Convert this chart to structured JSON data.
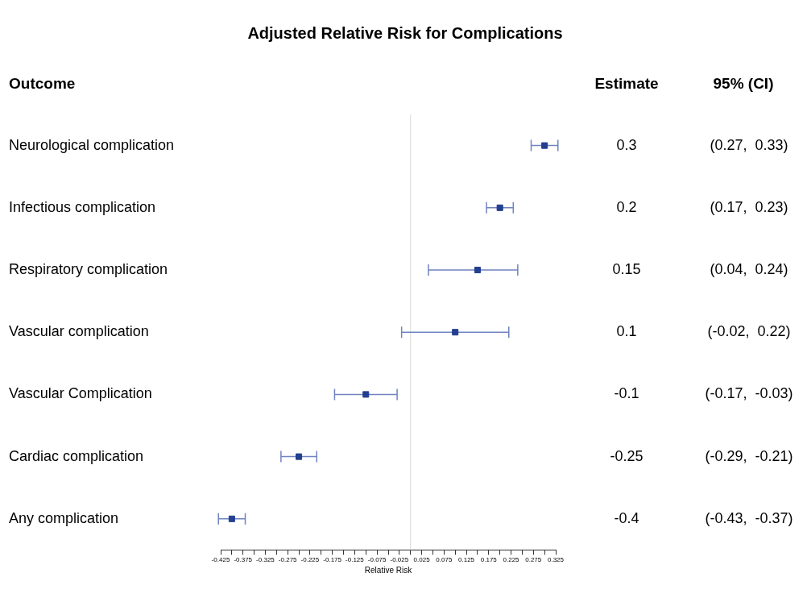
{
  "chart_data": {
    "type": "scatter",
    "orientation": "horizontal",
    "title": "Adjusted Relative Risk for Complications",
    "ylabel": "Outcome",
    "xlabel": "Relative Risk",
    "categories": [
      "Neurological complication",
      "Infectious complication",
      "Respiratory complication",
      "Vascular complication",
      "Vascular Complication",
      "Cardiac complication",
      "Any complication"
    ],
    "values": [
      0.3,
      0.2,
      0.15,
      0.1,
      -0.1,
      -0.25,
      -0.4
    ],
    "errors": [
      [
        0.27,
        0.33
      ],
      [
        0.17,
        0.23
      ],
      [
        0.04,
        0.24
      ],
      [
        -0.02,
        0.22
      ],
      [
        -0.17,
        -0.03
      ],
      [
        -0.29,
        -0.21
      ],
      [
        -0.43,
        -0.37
      ]
    ],
    "color": "#233f8f",
    "marker": "square",
    "value_labels": [
      "0.3",
      "0.2",
      "0.15",
      "0.1",
      "-0.1",
      "-0.25",
      "-0.4"
    ],
    "annotations": [
      "Estimate",
      "95% (CI)",
      "(0.27,  0.33)",
      "(0.17,  0.23)",
      "(0.04,  0.24)",
      "(-0.02,  0.22)",
      "(-0.17,  -0.03)",
      "(-0.29,  -0.21)",
      "(-0.43,  -0.37)"
    ],
    "ref_lines": [
      {
        "axis": "x",
        "value": 0,
        "color": "#d9d9d9"
      }
    ],
    "xlim": [
      -0.425,
      0.325
    ],
    "xticks": [
      -0.425,
      {
        "value": -0.4,
        "label": null
      },
      -0.375,
      {
        "value": -0.35,
        "label": null
      },
      -0.325,
      {
        "value": -0.3,
        "label": null
      },
      -0.275,
      {
        "value": -0.25,
        "label": null
      },
      -0.225,
      {
        "value": -0.2,
        "label": null
      },
      -0.175,
      {
        "value": -0.15,
        "label": null
      },
      -0.125,
      {
        "value": -0.1,
        "label": null
      },
      -0.075,
      {
        "value": -0.05,
        "label": null
      },
      -0.025,
      {
        "value": 0,
        "label": null
      },
      0.025,
      {
        "value": 0.05,
        "label": null
      },
      0.075,
      {
        "value": 0.1,
        "label": null
      },
      0.125,
      {
        "value": 0.15,
        "label": null
      },
      0.175,
      {
        "value": 0.2,
        "label": null
      },
      0.225,
      {
        "value": 0.25,
        "label": null
      },
      0.275,
      {
        "value": 0.3,
        "label": null
      },
      0.325
    ],
    "grid": false
  }
}
